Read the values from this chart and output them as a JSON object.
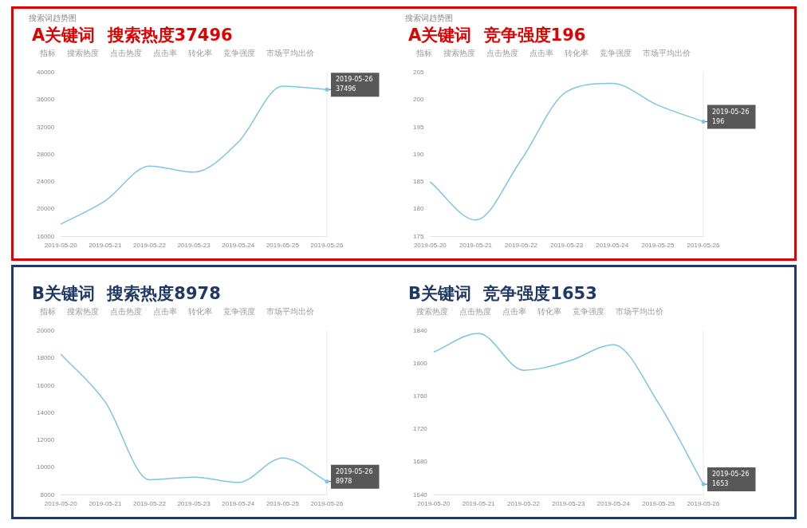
{
  "chart_data": [
    {
      "type": "line",
      "title": "A关键词 搜索热度37496",
      "subtitle": "搜索词趋势图",
      "categories": [
        "2019-05-20",
        "2019-05-21",
        "2019-05-22",
        "2019-05-23",
        "2019-05-24",
        "2019-05-25",
        "2019-05-26"
      ],
      "series": [
        {
          "color": "#82c3e3",
          "values": [
            17800,
            21200,
            26300,
            25400,
            29800,
            38000,
            37496
          ]
        }
      ],
      "ylim": [
        16000,
        40000
      ],
      "yticks": [
        16000,
        20000,
        24000,
        28000,
        32000,
        36000,
        40000
      ],
      "grid": false,
      "marker": "none",
      "ref_lines": [
        {
          "axis": "x",
          "value": "2019-05-26",
          "color": "#e3e8ef"
        }
      ],
      "annotations": [
        "指标",
        "搜索热度",
        "点击热度",
        "点击率",
        "转化率",
        "竞争强度",
        "市场平均出价",
        {
          "text": "2019-05-26",
          "x": "2019-05-26",
          "y": 37496
        },
        {
          "text": "37496",
          "x": "2019-05-26",
          "y": 37496
        }
      ]
    },
    {
      "type": "line",
      "title": "A关键词 竞争强度196",
      "subtitle": "搜索词趋势图",
      "categories": [
        "2019-05-20",
        "2019-05-21",
        "2019-05-22",
        "2019-05-23",
        "2019-05-24",
        "2019-05-25",
        "2019-05-26"
      ],
      "series": [
        {
          "color": "#82c3e3",
          "values": [
            185,
            178,
            189,
            201.5,
            203,
            199,
            196
          ]
        }
      ],
      "ylim": [
        175,
        205
      ],
      "yticks": [
        175,
        180,
        185,
        190,
        195,
        200,
        205
      ],
      "grid": false,
      "marker": "none",
      "ref_lines": [
        {
          "axis": "x",
          "value": "2019-05-26",
          "color": "#e3e8ef"
        }
      ],
      "annotations": [
        "指标",
        "搜索热度",
        "点击热度",
        "点击率",
        "转化率",
        "竞争强度",
        "市场平均出价",
        {
          "text": "2019-05-26",
          "x": "2019-05-26",
          "y": 196
        },
        {
          "text": "196",
          "x": "2019-05-26",
          "y": 196
        }
      ]
    },
    {
      "type": "line",
      "title": "B关键词 搜索热度8978",
      "categories": [
        "2019-05-20",
        "2019-05-21",
        "2019-05-22",
        "2019-05-23",
        "2019-05-24",
        "2019-05-25",
        "2019-05-26"
      ],
      "series": [
        {
          "color": "#82c3e3",
          "values": [
            18300,
            14800,
            9100,
            9300,
            8900,
            10700,
            8978
          ]
        }
      ],
      "ylim": [
        8000,
        20000
      ],
      "yticks": [
        8000,
        10000,
        12000,
        14000,
        16000,
        18000,
        20000
      ],
      "grid": false,
      "marker": "none",
      "ref_lines": [
        {
          "axis": "x",
          "value": "2019-05-26",
          "color": "#e3e8ef"
        }
      ],
      "annotations": [
        "指标",
        "搜索热度",
        "点击热度",
        "点击率",
        "转化率",
        "竞争强度",
        "市场平均出价",
        {
          "text": "2019-05-26",
          "x": "2019-05-26",
          "y": 8978
        },
        {
          "text": "8978",
          "x": "2019-05-26",
          "y": 8978
        }
      ]
    },
    {
      "type": "line",
      "title": "B关键词 竞争强度1653",
      "categories": [
        "2019-05-20",
        "2019-05-21",
        "2019-05-22",
        "2019-05-23",
        "2019-05-24",
        "2019-05-25",
        "2019-05-26"
      ],
      "series": [
        {
          "color": "#82c3e3",
          "values": [
            1814,
            1837,
            1792,
            1803,
            1823,
            1752,
            1653
          ]
        }
      ],
      "ylim": [
        1640,
        1840
      ],
      "yticks": [
        1640,
        1680,
        1720,
        1760,
        1800,
        1840
      ],
      "grid": false,
      "marker": "none",
      "ref_lines": [
        {
          "axis": "x",
          "value": "2019-05-26",
          "color": "#e3e8ef"
        }
      ],
      "annotations": [
        "搜索热度",
        "点击热度",
        "点击率",
        "转化率",
        "竞争强度",
        "市场平均出价",
        {
          "text": "2019-05-26",
          "x": "2019-05-26",
          "y": 1653
        },
        {
          "text": "1653",
          "x": "2019-05-26",
          "y": 1653
        }
      ]
    }
  ]
}
